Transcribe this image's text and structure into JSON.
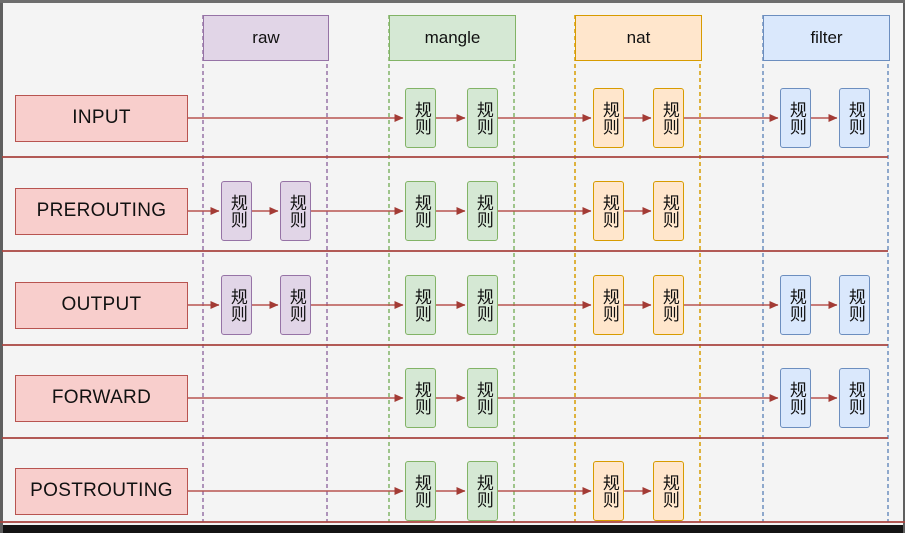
{
  "diagram": {
    "type": "iptables-tables-chains-flow",
    "rule_label": "规则",
    "rules_per_table": 2,
    "tables": [
      {
        "id": "raw",
        "label": "raw",
        "fill": "#e1d5e7",
        "stroke": "#9673a6"
      },
      {
        "id": "mangle",
        "label": "mangle",
        "fill": "#d5e8d4",
        "stroke": "#82b366"
      },
      {
        "id": "nat",
        "label": "nat",
        "fill": "#ffe6cc",
        "stroke": "#d79b00"
      },
      {
        "id": "filter",
        "label": "filter",
        "fill": "#dae8fc",
        "stroke": "#6c8ebf"
      }
    ],
    "chains": [
      {
        "label": "INPUT",
        "tables": [
          "mangle",
          "nat",
          "filter"
        ]
      },
      {
        "label": "PREROUTING",
        "tables": [
          "raw",
          "mangle",
          "nat"
        ]
      },
      {
        "label": "OUTPUT",
        "tables": [
          "raw",
          "mangle",
          "nat",
          "filter"
        ]
      },
      {
        "label": "FORWARD",
        "tables": [
          "mangle",
          "filter"
        ]
      },
      {
        "label": "POSTROUTING",
        "tables": [
          "mangle",
          "nat"
        ]
      }
    ],
    "colors": {
      "chain_fill": "#f8cecc",
      "chain_stroke": "#b85450",
      "arrow_line": "#b85450",
      "arrow_head": "#a33b35",
      "row_separator": "#a8453f",
      "background": "#f4f4f4"
    }
  }
}
